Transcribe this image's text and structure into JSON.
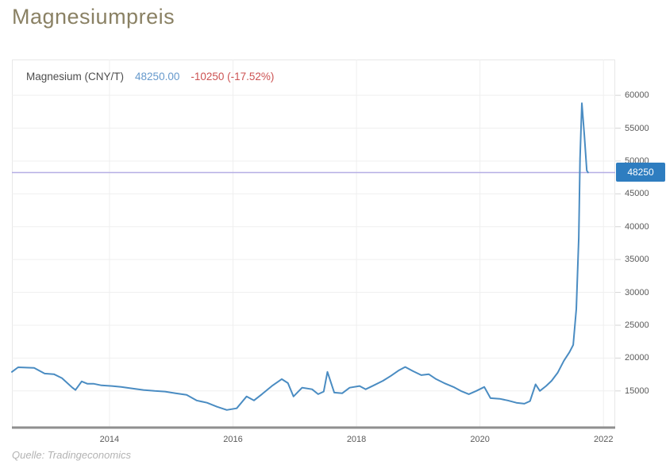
{
  "page": {
    "title": "Magnesiumpreis",
    "source": "Quelle: Tradingeconomics"
  },
  "legend": {
    "series_label": "Magnesium (CNY/T)",
    "last_price": "48250.00",
    "change": "-10250 (-17.52%)"
  },
  "price_badge": {
    "label": "48250"
  },
  "colors": {
    "title": "#8a8164",
    "line": "#4a8cc2",
    "ref_line": "#b5aee4",
    "badge_bg": "#2e7dc0",
    "badge_text": "#ffffff",
    "price_text": "#6699cc",
    "change_text": "#cc5252",
    "tick_text": "#5a5a5a",
    "grid": "#efefef",
    "axis": "#8f8f8f"
  },
  "chart_data": {
    "type": "line",
    "title": "Magnesiumpreis",
    "x_ticks": [
      2014,
      2016,
      2018,
      2020,
      2022
    ],
    "y_ticks": [
      60000,
      55000,
      50000,
      45000,
      40000,
      35000,
      30000,
      25000,
      20000,
      15000
    ],
    "xlim": [
      2012.42,
      2022.19
    ],
    "ylim": [
      9300,
      65450
    ],
    "ref_line_value": 48250,
    "grid": true,
    "legend_position": "top-left",
    "y_axis_side": "right",
    "series": [
      {
        "name": "Magnesium (CNY/T)",
        "unit": "CNY/T",
        "points": [
          [
            2012.42,
            17900
          ],
          [
            2012.52,
            18600
          ],
          [
            2012.78,
            18500
          ],
          [
            2012.95,
            17650
          ],
          [
            2013.1,
            17550
          ],
          [
            2013.23,
            16950
          ],
          [
            2013.4,
            15500
          ],
          [
            2013.45,
            15150
          ],
          [
            2013.55,
            16450
          ],
          [
            2013.64,
            16100
          ],
          [
            2013.74,
            16100
          ],
          [
            2013.87,
            15850
          ],
          [
            2014.04,
            15750
          ],
          [
            2014.19,
            15600
          ],
          [
            2014.35,
            15400
          ],
          [
            2014.55,
            15150
          ],
          [
            2014.73,
            15000
          ],
          [
            2014.9,
            14900
          ],
          [
            2015.07,
            14650
          ],
          [
            2015.25,
            14400
          ],
          [
            2015.41,
            13550
          ],
          [
            2015.58,
            13200
          ],
          [
            2015.74,
            12600
          ],
          [
            2015.9,
            12100
          ],
          [
            2016.06,
            12350
          ],
          [
            2016.22,
            14150
          ],
          [
            2016.34,
            13550
          ],
          [
            2016.47,
            14500
          ],
          [
            2016.63,
            15750
          ],
          [
            2016.79,
            16800
          ],
          [
            2016.89,
            16200
          ],
          [
            2016.98,
            14150
          ],
          [
            2017.12,
            15500
          ],
          [
            2017.28,
            15250
          ],
          [
            2017.38,
            14500
          ],
          [
            2017.47,
            14900
          ],
          [
            2017.53,
            17900
          ],
          [
            2017.64,
            14750
          ],
          [
            2017.77,
            14650
          ],
          [
            2017.89,
            15500
          ],
          [
            2018.05,
            15750
          ],
          [
            2018.15,
            15250
          ],
          [
            2018.28,
            15850
          ],
          [
            2018.43,
            16550
          ],
          [
            2018.56,
            17300
          ],
          [
            2018.69,
            18150
          ],
          [
            2018.79,
            18650
          ],
          [
            2018.92,
            18000
          ],
          [
            2019.05,
            17400
          ],
          [
            2019.17,
            17550
          ],
          [
            2019.29,
            16800
          ],
          [
            2019.42,
            16200
          ],
          [
            2019.57,
            15600
          ],
          [
            2019.69,
            15000
          ],
          [
            2019.82,
            14500
          ],
          [
            2019.94,
            15000
          ],
          [
            2020.07,
            15600
          ],
          [
            2020.17,
            13900
          ],
          [
            2020.32,
            13800
          ],
          [
            2020.45,
            13550
          ],
          [
            2020.59,
            13200
          ],
          [
            2020.72,
            13050
          ],
          [
            2020.81,
            13450
          ],
          [
            2020.9,
            16000
          ],
          [
            2020.97,
            15000
          ],
          [
            2021.07,
            15750
          ],
          [
            2021.16,
            16550
          ],
          [
            2021.26,
            17800
          ],
          [
            2021.36,
            19600
          ],
          [
            2021.45,
            20900
          ],
          [
            2021.51,
            22000
          ],
          [
            2021.56,
            27450
          ],
          [
            2021.6,
            38300
          ],
          [
            2021.62,
            50350
          ],
          [
            2021.65,
            58800
          ],
          [
            2021.69,
            54000
          ],
          [
            2021.73,
            48550
          ],
          [
            2021.75,
            48250
          ]
        ]
      }
    ]
  }
}
